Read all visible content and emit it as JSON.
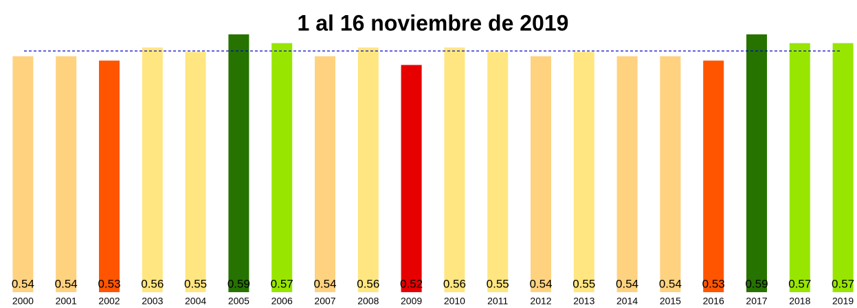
{
  "chart_data": {
    "type": "bar",
    "title": "1 al 16 noviembre de 2019",
    "categories": [
      "2000",
      "2001",
      "2002",
      "2003",
      "2004",
      "2005",
      "2006",
      "2007",
      "2008",
      "2009",
      "2010",
      "2011",
      "2012",
      "2013",
      "2014",
      "2015",
      "2016",
      "2017",
      "2018",
      "2019"
    ],
    "values": [
      0.54,
      0.54,
      0.53,
      0.56,
      0.55,
      0.59,
      0.57,
      0.54,
      0.56,
      0.52,
      0.56,
      0.55,
      0.54,
      0.55,
      0.54,
      0.54,
      0.53,
      0.59,
      0.57,
      0.57
    ],
    "colors": [
      "#ffd280",
      "#ffd280",
      "#ff5500",
      "#ffe680",
      "#ffe680",
      "#267300",
      "#98e600",
      "#ffd280",
      "#ffe680",
      "#e60000",
      "#ffe680",
      "#ffe680",
      "#ffd280",
      "#ffe680",
      "#ffd280",
      "#ffd280",
      "#ff5500",
      "#267300",
      "#98e600",
      "#98e600"
    ],
    "ylim": [
      0,
      0.59
    ],
    "reference_line": {
      "value": 0.552,
      "color": "#0000cc"
    }
  }
}
